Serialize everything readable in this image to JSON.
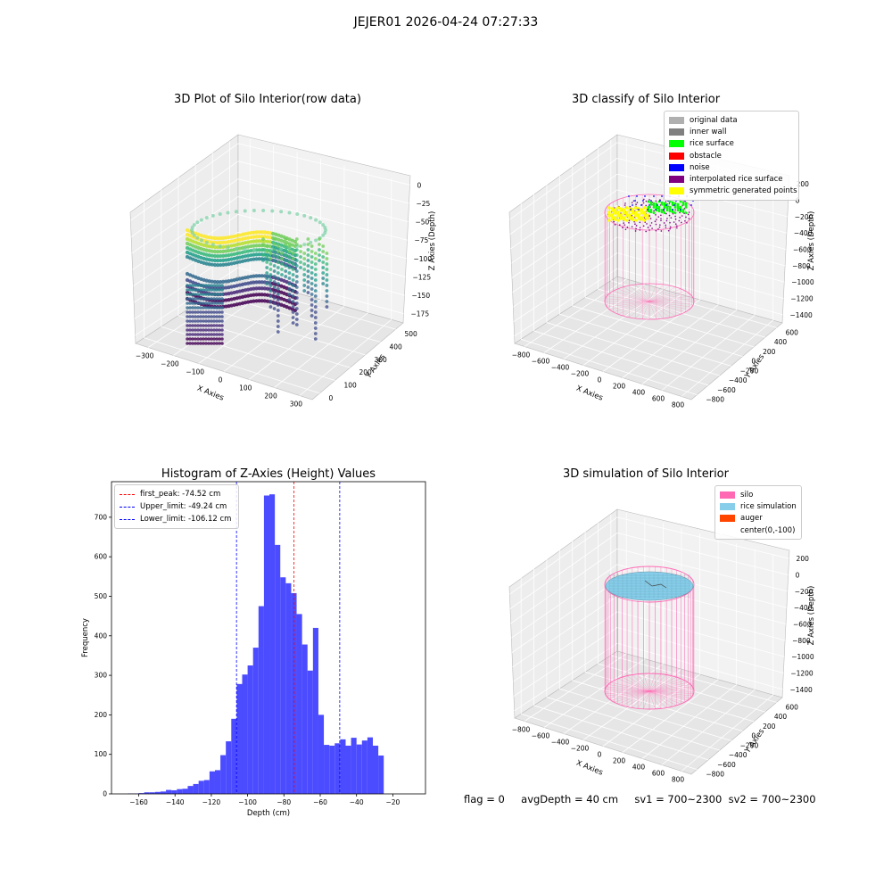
{
  "suptitle": "JEJER01 2026-04-24 07:27:33",
  "panels": {
    "raw": {
      "title": "3D Plot of Silo Interior(row data)",
      "xlabel": "X Axies",
      "ylabel": "Y Axies",
      "zlabel": "Z Axies (Depth)",
      "x_ticks": [
        "−300",
        "−200",
        "−100",
        "0",
        "100",
        "200",
        "300"
      ],
      "y_ticks": [
        "0",
        "100",
        "200",
        "300",
        "400",
        "500"
      ],
      "z_ticks": [
        "0",
        "−25",
        "−50",
        "−75",
        "−100",
        "−125",
        "−150",
        "−175"
      ],
      "colormap": "viridis"
    },
    "classify": {
      "title": "3D classify of Silo Interior",
      "xlabel": "X Axies",
      "ylabel": "Y Axies",
      "zlabel": "Z Axies (Depth)",
      "x_ticks": [
        "−800",
        "−600",
        "−400",
        "−200",
        "0",
        "200",
        "400",
        "600",
        "800"
      ],
      "y_ticks": [
        "−800",
        "−600",
        "−400",
        "−200",
        "0",
        "200",
        "400",
        "600"
      ],
      "z_ticks": [
        "200",
        "0",
        "−200",
        "−400",
        "−600",
        "−800",
        "−1000",
        "−1200",
        "−1400"
      ],
      "legend": [
        {
          "label": "original data",
          "color": "#b0b0b0"
        },
        {
          "label": "inner wall",
          "color": "#808080"
        },
        {
          "label": "rice surface",
          "color": "#00ff00"
        },
        {
          "label": "obstacle",
          "color": "#ff0000"
        },
        {
          "label": "noise",
          "color": "#0000ff"
        },
        {
          "label": "interpolated rice surface",
          "color": "#800080"
        },
        {
          "label": "symmetric generated points",
          "color": "#ffff00"
        }
      ],
      "wall_color": "#ff69b4"
    },
    "simulation": {
      "title": "3D simulation of Silo Interior",
      "xlabel": "X Axies",
      "ylabel": "Y Axies",
      "zlabel": "Z Axies (Depth)",
      "x_ticks": [
        "−800",
        "−600",
        "−400",
        "−200",
        "0",
        "200",
        "400",
        "600",
        "800"
      ],
      "y_ticks": [
        "−800",
        "−600",
        "−400",
        "−200",
        "0",
        "200",
        "400",
        "600"
      ],
      "z_ticks": [
        "200",
        "0",
        "−200",
        "−400",
        "−600",
        "−800",
        "−1000",
        "−1200",
        "−1400"
      ],
      "legend": [
        {
          "label": "silo",
          "color": "#ff69b4"
        },
        {
          "label": "rice simulation",
          "color": "#87ceeb"
        },
        {
          "label": "auger",
          "color": "#ff4500"
        },
        {
          "label": "center(0,-100)",
          "color": "#ffffff"
        }
      ]
    }
  },
  "chart_data": {
    "type": "bar",
    "title": "Histogram of Z-Axies (Height) Values",
    "xlabel": "Depth (cm)",
    "ylabel": "Frequency",
    "xlim": [
      -175,
      -2
    ],
    "ylim": [
      0,
      790
    ],
    "x_ticks": [
      -160,
      -140,
      -120,
      -100,
      -80,
      -60,
      -40,
      -20
    ],
    "x_tick_labels": [
      "−160",
      "−140",
      "−120",
      "−100",
      "−80",
      "−60",
      "−40",
      "−20"
    ],
    "y_ticks": [
      0,
      100,
      200,
      300,
      400,
      500,
      600,
      700
    ],
    "bar_color": "#4b4bff",
    "bin_width": 3,
    "bin_start": -166,
    "values": [
      1,
      1,
      2,
      4,
      4,
      5,
      6,
      10,
      9,
      12,
      13,
      20,
      25,
      33,
      35,
      57,
      60,
      98,
      133,
      190,
      278,
      302,
      325,
      370,
      475,
      755,
      758,
      630,
      548,
      533,
      508,
      455,
      378,
      312,
      420,
      200,
      124,
      122,
      128,
      138,
      122,
      142,
      125,
      135,
      143,
      122,
      97
    ],
    "lines": [
      {
        "label": "first_peak: -74.52 cm",
        "x": -74.52,
        "color": "#ff0000"
      },
      {
        "label": "Upper_limit: -49.24 cm",
        "x": -49.24,
        "color": "#0000ff"
      },
      {
        "label": "Lower_limit: -106.12 cm",
        "x": -106.12,
        "color": "#0000ff"
      }
    ]
  },
  "footer": {
    "flag": "flag = 0",
    "avg": "avgDepth = 40 cm",
    "sv1": "sv1 = 700~2300",
    "sv2": "sv2 = 700~2300"
  }
}
